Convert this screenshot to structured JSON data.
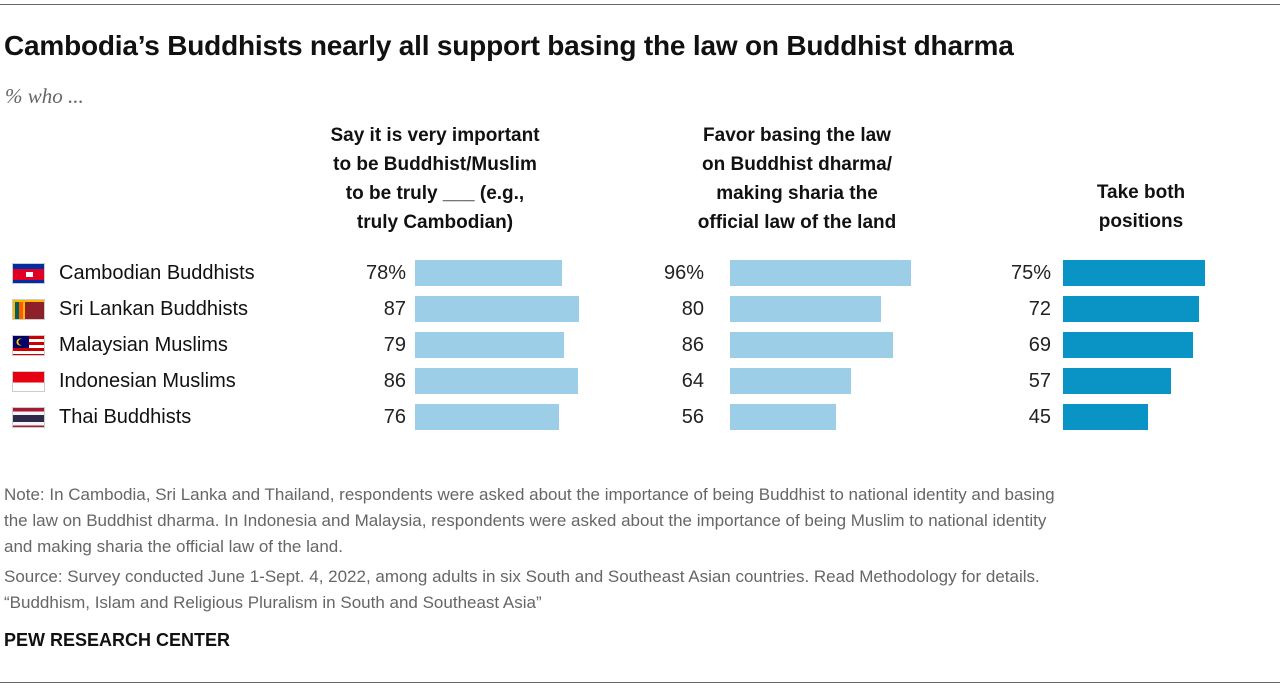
{
  "title": "Cambodia’s Buddhists nearly all support basing the law on Buddhist dharma",
  "subtitle": "% who ...",
  "colors": {
    "light_bar": "#9ccfe7",
    "dark_bar": "#0a93c5"
  },
  "chart_data": {
    "type": "bar",
    "orientation": "horizontal",
    "categories": [
      "Cambodian Buddhists",
      "Sri Lankan Buddhists",
      "Malaysian Muslims",
      "Indonesian Muslims",
      "Thai Buddhists"
    ],
    "flags": [
      "cambodia-flag-icon",
      "sri-lanka-flag-icon",
      "malaysia-flag-icon",
      "indonesia-flag-icon",
      "thailand-flag-icon"
    ],
    "xlim": [
      0,
      100
    ],
    "series": [
      {
        "name": "Say it is very important\nto be Buddhist/Muslim\nto be truly ___ (e.g.,\ntruly Cambodian)",
        "values": [
          78,
          87,
          79,
          86,
          76
        ],
        "labels": [
          "78%",
          "87",
          "79",
          "86",
          "76"
        ],
        "color": "#9ccfe7"
      },
      {
        "name": "Favor basing the law\non Buddhist dharma/\nmaking sharia the\nofficial law of the land",
        "values": [
          96,
          80,
          86,
          64,
          56
        ],
        "labels": [
          "96%",
          "80",
          "86",
          "64",
          "56"
        ],
        "color": "#9ccfe7"
      },
      {
        "name": "Take both\npositions",
        "values": [
          75,
          72,
          69,
          57,
          45
        ],
        "labels": [
          "75%",
          "72",
          "69",
          "57",
          "45"
        ],
        "color": "#0a93c5"
      }
    ]
  },
  "notes": {
    "note_line1": "Note: In Cambodia, Sri Lanka and Thailand, respondents were asked about the importance of being Buddhist to national identity and basing",
    "note_line2": "the law on Buddhist dharma. In Indonesia and Malaysia, respondents were asked about the importance of being Muslim to national identity",
    "note_line3": "and making sharia the official law of the land.",
    "source": "Source: Survey conducted June 1-Sept. 4, 2022, among adults in six South and Southeast Asian countries. Read Methodology for details.",
    "report": "“Buddhism, Islam and Religious Pluralism in South and Southeast Asia”"
  },
  "brand": "PEW RESEARCH CENTER"
}
